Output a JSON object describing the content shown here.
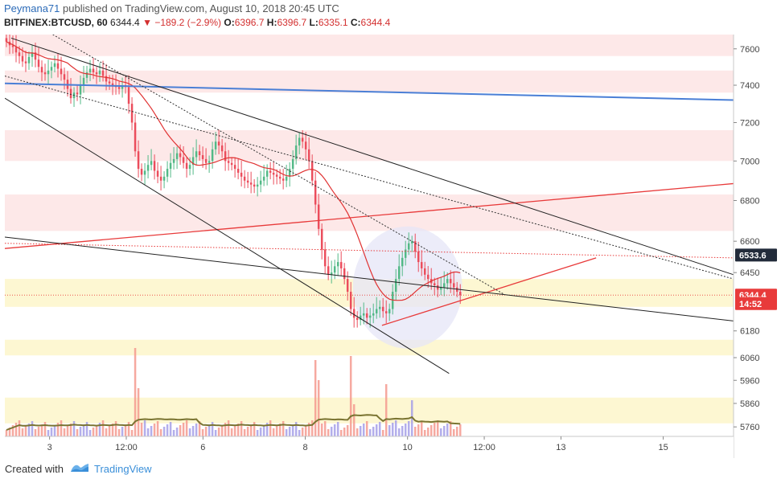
{
  "header": {
    "user": "Peymana71",
    "published_text": "published on TradingView.com, August 10, 2018 20:45 UTC",
    "symbol": "BITFINEX:BTCUSD, 60",
    "last": "6344.4",
    "change": "−189.2 (−2.9%)",
    "o_label": "O:",
    "o_value": "6396.7",
    "h_label": "H:",
    "h_value": "6396.7",
    "l_label": "L:",
    "l_value": "6335.1",
    "c_label": "C:",
    "c_value": "6344.4"
  },
  "footer": {
    "created_with": "Created with",
    "brand": "TradingView"
  },
  "colors": {
    "up": "#53b987",
    "down": "#eb4d5c",
    "ma": "#e03232",
    "blue_line": "#4a7fd6",
    "red_line": "#e83a3a",
    "black_line": "#222222",
    "zone_pink": "#fde8e8",
    "zone_yellow": "#fdf7d2",
    "volume_avg": "#7a7431",
    "ellipse": "#e6e6f7"
  },
  "chart_data": {
    "type": "candlestick",
    "y_axis": {
      "scale": "log",
      "ticks": [
        7600,
        7400,
        7200,
        7000,
        6800,
        6600,
        6450,
        6180,
        6060,
        5960,
        5860,
        5760
      ],
      "range": [
        5720,
        7680
      ]
    },
    "x_axis": {
      "ticks": [
        "3",
        "12:00",
        "6",
        "8",
        "10",
        "12:00",
        "13",
        "15"
      ],
      "range_hours": [
        0,
        228
      ],
      "tick_hours": [
        14,
        38,
        62,
        94,
        126,
        150,
        174,
        206
      ]
    },
    "price_labels": [
      {
        "text": "6533.6",
        "value": 6533.6,
        "style": "dark"
      },
      {
        "text": "6344.4",
        "value": 6344.4,
        "style": "red"
      },
      {
        "text": "14:52",
        "value": 6305,
        "style": "red"
      }
    ],
    "zones": [
      {
        "from": 7560,
        "to": 7680,
        "color": "pink"
      },
      {
        "from": 7360,
        "to": 7480,
        "color": "pink"
      },
      {
        "from": 7000,
        "to": 7160,
        "color": "pink"
      },
      {
        "from": 6650,
        "to": 6830,
        "color": "pink"
      },
      {
        "from": 6290,
        "to": 6420,
        "color": "yellow"
      },
      {
        "from": 6070,
        "to": 6140,
        "color": "yellow"
      },
      {
        "from": 5775,
        "to": 5885,
        "color": "yellow"
      }
    ],
    "trendlines": [
      {
        "name": "blue",
        "x1": 0,
        "y1": 7410,
        "x2": 228,
        "y2": 7320,
        "style": "blue"
      },
      {
        "name": "red-up",
        "x1": 0,
        "y1": 6565,
        "x2": 228,
        "y2": 6885,
        "style": "red"
      },
      {
        "name": "red-support",
        "x1": 118,
        "y1": 6205,
        "x2": 185,
        "y2": 6520,
        "style": "red"
      },
      {
        "name": "red-dotted",
        "x1": 0,
        "y1": 6590,
        "x2": 228,
        "y2": 6520,
        "style": "red-dotted"
      },
      {
        "name": "red-last",
        "x1": 0,
        "y1": 6344.4,
        "x2": 228,
        "y2": 6344.4,
        "style": "red-dotted-thin"
      },
      {
        "name": "black-upper",
        "x1": 2,
        "y1": 7660,
        "x2": 228,
        "y2": 6440,
        "style": "black"
      },
      {
        "name": "black-lower",
        "x1": 0,
        "y1": 7330,
        "x2": 139,
        "y2": 5990,
        "style": "black"
      },
      {
        "name": "black-mid",
        "x1": 0,
        "y1": 6620,
        "x2": 228,
        "y2": 6225,
        "style": "black"
      },
      {
        "name": "dotted-upper",
        "x1": 0,
        "y1": 7450,
        "x2": 228,
        "y2": 6420,
        "style": "black-dotted"
      },
      {
        "name": "dotted-steep",
        "x1": 15,
        "y1": 7680,
        "x2": 156,
        "y2": 6350,
        "style": "black-dotted"
      }
    ],
    "series": [
      {
        "name": "",
        "type": "candles",
        "close": [
          7640,
          7620,
          7610,
          7580,
          7560,
          7530,
          7520,
          7555,
          7580,
          7540,
          7500,
          7470,
          7460,
          7480,
          7500,
          7520,
          7490,
          7460,
          7430,
          7380,
          7330,
          7360,
          7350,
          7400,
          7440,
          7470,
          7490,
          7470,
          7460,
          7480,
          7450,
          7420,
          7410,
          7400,
          7390,
          7380,
          7400,
          7390,
          7300,
          7200,
          7050,
          6960,
          6930,
          6950,
          6980,
          7000,
          6950,
          6920,
          6900,
          6920,
          6960,
          6990,
          7010,
          7040,
          7020,
          6990,
          6960,
          6980,
          7020,
          7050,
          7030,
          7010,
          6990,
          7000,
          7060,
          7100,
          7080,
          7050,
          7000,
          6990,
          6980,
          6960,
          6940,
          6920,
          6900,
          6890,
          6880,
          6870,
          6880,
          6900,
          6920,
          6950,
          6940,
          6930,
          6920,
          6910,
          6900,
          6920,
          6960,
          7010,
          7080,
          7120,
          7100,
          7060,
          7000,
          6900,
          6780,
          6660,
          6560,
          6480,
          6440,
          6450,
          6480,
          6500,
          6470,
          6420,
          6360,
          6280,
          6240,
          6230,
          6250,
          6260,
          6240,
          6250,
          6260,
          6280,
          6290,
          6270,
          6260,
          6280,
          6360,
          6420,
          6480,
          6520,
          6560,
          6590,
          6600,
          6550,
          6500,
          6470,
          6440,
          6420,
          6400,
          6390,
          6370,
          6380,
          6400,
          6420,
          6400,
          6380,
          6360,
          6344.4
        ],
        "ma_period": 20
      },
      {
        "name": "",
        "type": "volume"
      }
    ]
  }
}
